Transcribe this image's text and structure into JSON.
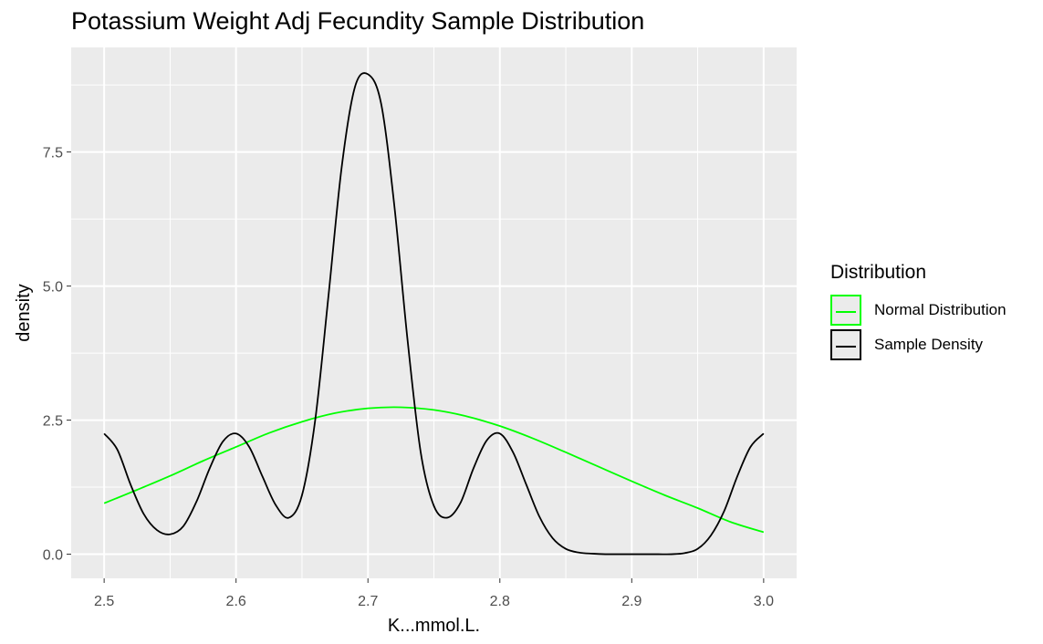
{
  "title": "Potassium Weight Adj Fecundity Sample Distribution",
  "colors": {
    "normal": "#00ff00",
    "sample": "#000000",
    "panel": "#ebebeb",
    "grid": "#ffffff"
  },
  "legend": {
    "title": "Distribution",
    "items": [
      {
        "label": "Normal Distribution",
        "color": "#00ff00"
      },
      {
        "label": "Sample Density",
        "color": "#000000"
      }
    ]
  },
  "chart_data": {
    "type": "line",
    "title": "Potassium Weight Adj Fecundity Sample Distribution",
    "xlabel": "K...mmol.L.",
    "ylabel": "density",
    "xlim": [
      2.475,
      3.025
    ],
    "ylim": [
      -0.45,
      9.45
    ],
    "x_ticks": [
      "2.5",
      "2.6",
      "2.7",
      "2.8",
      "2.9",
      "3.0"
    ],
    "x_tick_values": [
      2.5,
      2.6,
      2.7,
      2.8,
      2.9,
      3.0
    ],
    "y_ticks": [
      "0.0",
      "2.5",
      "5.0",
      "7.5"
    ],
    "y_tick_values": [
      0.0,
      2.5,
      5.0,
      7.5
    ],
    "grid": true,
    "legend_position": "right",
    "series": [
      {
        "name": "Normal Distribution",
        "color": "#00ff00",
        "x": [
          2.5,
          2.525,
          2.55,
          2.575,
          2.6,
          2.625,
          2.65,
          2.675,
          2.7,
          2.725,
          2.75,
          2.775,
          2.8,
          2.825,
          2.85,
          2.875,
          2.9,
          2.925,
          2.95,
          2.975,
          3.0
        ],
        "y": [
          0.95,
          1.2,
          1.46,
          1.74,
          2.0,
          2.26,
          2.47,
          2.63,
          2.72,
          2.74,
          2.69,
          2.57,
          2.39,
          2.16,
          1.9,
          1.63,
          1.36,
          1.1,
          0.86,
          0.6,
          0.41
        ]
      },
      {
        "name": "Sample Density",
        "color": "#000000",
        "x": [
          2.5,
          2.51,
          2.52,
          2.53,
          2.54,
          2.55,
          2.56,
          2.57,
          2.58,
          2.59,
          2.6,
          2.61,
          2.62,
          2.63,
          2.64,
          2.65,
          2.66,
          2.67,
          2.68,
          2.69,
          2.7,
          2.71,
          2.72,
          2.73,
          2.74,
          2.75,
          2.76,
          2.77,
          2.78,
          2.79,
          2.8,
          2.81,
          2.82,
          2.83,
          2.84,
          2.85,
          2.86,
          2.87,
          2.88,
          2.89,
          2.9,
          2.91,
          2.92,
          2.93,
          2.94,
          2.95,
          2.96,
          2.97,
          2.98,
          2.99,
          3.0
        ],
        "y": [
          2.25,
          1.95,
          1.3,
          0.75,
          0.45,
          0.37,
          0.52,
          0.98,
          1.6,
          2.1,
          2.25,
          2.0,
          1.45,
          0.92,
          0.68,
          1.1,
          2.5,
          4.8,
          7.2,
          8.7,
          8.95,
          8.4,
          6.5,
          4.0,
          1.9,
          0.9,
          0.68,
          0.95,
          1.6,
          2.12,
          2.25,
          1.9,
          1.3,
          0.7,
          0.3,
          0.1,
          0.03,
          0.01,
          0.0,
          0.0,
          0.0,
          0.0,
          0.0,
          0.0,
          0.02,
          0.1,
          0.35,
          0.8,
          1.45,
          2.0,
          2.25
        ]
      }
    ]
  }
}
